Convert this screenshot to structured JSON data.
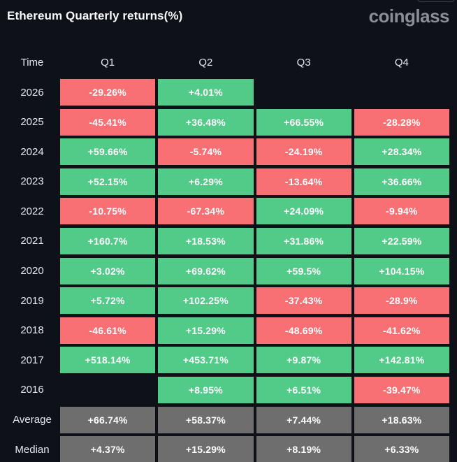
{
  "page": {
    "title": "Ethereum Quarterly returns(%)",
    "logo": "coinglass"
  },
  "colors": {
    "background": "#0e1118",
    "positive": "#52cb89",
    "negative": "#f87073",
    "summary": "#6e6e6e"
  },
  "table": {
    "columns": [
      "Time",
      "Q1",
      "Q2",
      "Q3",
      "Q4"
    ],
    "rows": [
      {
        "label": "2026",
        "type": "year",
        "values": [
          "-29.26%",
          "+4.01%",
          "",
          ""
        ]
      },
      {
        "label": "2025",
        "type": "year",
        "values": [
          "-45.41%",
          "+36.48%",
          "+66.55%",
          "-28.28%"
        ]
      },
      {
        "label": "2024",
        "type": "year",
        "values": [
          "+59.66%",
          "-5.74%",
          "-24.19%",
          "+28.34%"
        ]
      },
      {
        "label": "2023",
        "type": "year",
        "values": [
          "+52.15%",
          "+6.29%",
          "-13.64%",
          "+36.66%"
        ]
      },
      {
        "label": "2022",
        "type": "year",
        "values": [
          "-10.75%",
          "-67.34%",
          "+24.09%",
          "-9.94%"
        ]
      },
      {
        "label": "2021",
        "type": "year",
        "values": [
          "+160.7%",
          "+18.53%",
          "+31.86%",
          "+22.59%"
        ]
      },
      {
        "label": "2020",
        "type": "year",
        "values": [
          "+3.02%",
          "+69.62%",
          "+59.5%",
          "+104.15%"
        ]
      },
      {
        "label": "2019",
        "type": "year",
        "values": [
          "+5.72%",
          "+102.25%",
          "-37.43%",
          "-28.9%"
        ]
      },
      {
        "label": "2018",
        "type": "year",
        "values": [
          "-46.61%",
          "+15.29%",
          "-48.69%",
          "-41.62%"
        ]
      },
      {
        "label": "2017",
        "type": "year",
        "values": [
          "+518.14%",
          "+453.71%",
          "+9.87%",
          "+142.81%"
        ]
      },
      {
        "label": "2016",
        "type": "year",
        "values": [
          "",
          "+8.95%",
          "+6.51%",
          "-39.47%"
        ]
      },
      {
        "label": "Average",
        "type": "summary",
        "values": [
          "+66.74%",
          "+58.37%",
          "+7.44%",
          "+18.63%"
        ]
      },
      {
        "label": "Median",
        "type": "summary",
        "values": [
          "+4.37%",
          "+15.29%",
          "+8.19%",
          "+6.33%"
        ]
      }
    ]
  },
  "chart_data": {
    "type": "heatmap",
    "title": "Ethereum Quarterly returns(%)",
    "columns": [
      "Q1",
      "Q2",
      "Q3",
      "Q4"
    ],
    "rows": [
      "2026",
      "2025",
      "2024",
      "2023",
      "2022",
      "2021",
      "2020",
      "2019",
      "2018",
      "2017",
      "2016",
      "Average",
      "Median"
    ],
    "values_pct": [
      [
        -29.26,
        4.01,
        null,
        null
      ],
      [
        -45.41,
        36.48,
        66.55,
        -28.28
      ],
      [
        59.66,
        -5.74,
        -24.19,
        28.34
      ],
      [
        52.15,
        6.29,
        -13.64,
        36.66
      ],
      [
        -10.75,
        -67.34,
        24.09,
        -9.94
      ],
      [
        160.7,
        18.53,
        31.86,
        22.59
      ],
      [
        3.02,
        69.62,
        59.5,
        104.15
      ],
      [
        5.72,
        102.25,
        -37.43,
        -28.9
      ],
      [
        -46.61,
        15.29,
        -48.69,
        -41.62
      ],
      [
        518.14,
        453.71,
        9.87,
        142.81
      ],
      [
        null,
        8.95,
        6.51,
        -39.47
      ],
      [
        66.74,
        58.37,
        7.44,
        18.63
      ],
      [
        4.37,
        15.29,
        8.19,
        6.33
      ]
    ],
    "legend": "green = positive return, red = negative return, gray = summary rows",
    "units": "%"
  }
}
